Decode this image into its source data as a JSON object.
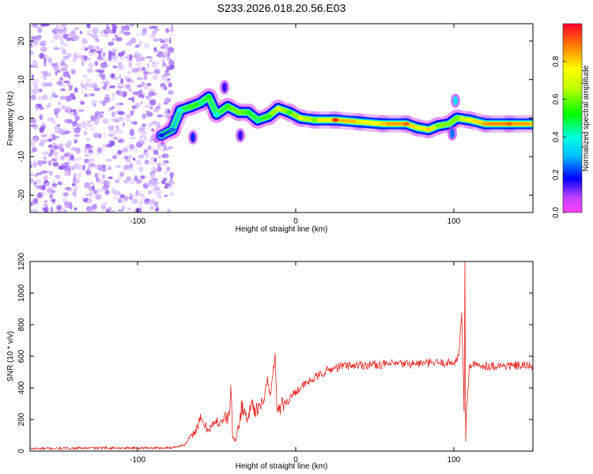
{
  "figure_title": "S233.2026.018.20.56.E03",
  "chart_data": [
    {
      "type": "heatmap",
      "title": "S233.2026.018.20.56.E03",
      "xlabel": "Height of straight line (km)",
      "ylabel": "Frequency (Hz)",
      "xlim": [
        -168,
        150
      ],
      "ylim": [
        -24.5,
        24.5
      ],
      "xticks": [
        -100,
        0,
        100
      ],
      "yticks": [
        -20,
        -10,
        0,
        10,
        20
      ],
      "colorbar": {
        "label": "Normalized spectral amplitude",
        "range": [
          0,
          1
        ],
        "ticks": [
          0.0,
          0.2,
          0.4,
          0.6,
          0.8
        ],
        "colormap": "rainbow (magenta-blue-cyan-green-yellow-red)"
      },
      "noise_region": {
        "x_from": -168,
        "x_to": -78,
        "amplitude_range": [
          0.0,
          0.1
        ]
      },
      "ridge": [
        {
          "x": -85,
          "freq": -4.5,
          "amp": 0.2
        },
        {
          "x": -78,
          "freq": -3.0,
          "amp": 0.25
        },
        {
          "x": -73,
          "freq": 2.0,
          "amp": 0.4
        },
        {
          "x": -66,
          "freq": 3.0,
          "amp": 0.55
        },
        {
          "x": -60,
          "freq": 4.0,
          "amp": 0.45
        },
        {
          "x": -55,
          "freq": 5.5,
          "amp": 0.5
        },
        {
          "x": -50,
          "freq": 1.0,
          "amp": 0.4
        },
        {
          "x": -43,
          "freq": 3.0,
          "amp": 0.55
        },
        {
          "x": -36,
          "freq": 1.5,
          "amp": 0.6
        },
        {
          "x": -30,
          "freq": 1.5,
          "amp": 0.5
        },
        {
          "x": -24,
          "freq": -0.5,
          "amp": 0.45
        },
        {
          "x": -17,
          "freq": 0.5,
          "amp": 0.55
        },
        {
          "x": -11,
          "freq": 2.5,
          "amp": 0.7
        },
        {
          "x": -4,
          "freq": 1.5,
          "amp": 0.55
        },
        {
          "x": 3,
          "freq": 0.0,
          "amp": 0.7
        },
        {
          "x": 12,
          "freq": -0.5,
          "amp": 0.6
        },
        {
          "x": 25,
          "freq": -0.5,
          "amp": 0.95
        },
        {
          "x": 40,
          "freq": -1.0,
          "amp": 0.7
        },
        {
          "x": 55,
          "freq": -1.5,
          "amp": 0.8
        },
        {
          "x": 70,
          "freq": -1.5,
          "amp": 0.9
        },
        {
          "x": 77,
          "freq": -2.5,
          "amp": 0.7
        },
        {
          "x": 84,
          "freq": -3.0,
          "amp": 0.8
        },
        {
          "x": 90,
          "freq": -2.0,
          "amp": 0.6
        },
        {
          "x": 97,
          "freq": -1.5,
          "amp": 0.6
        },
        {
          "x": 102,
          "freq": 0.0,
          "amp": 0.6
        },
        {
          "x": 110,
          "freq": -0.5,
          "amp": 0.75
        },
        {
          "x": 120,
          "freq": -1.5,
          "amp": 0.85
        },
        {
          "x": 135,
          "freq": -1.5,
          "amp": 0.9
        },
        {
          "x": 150,
          "freq": -1.5,
          "amp": 0.8
        }
      ],
      "secondary_blobs": [
        {
          "x": 101,
          "freq": 4.5,
          "amp": 0.35
        },
        {
          "x": 99,
          "freq": -4.0,
          "amp": 0.25
        },
        {
          "x": -65,
          "freq": -5.0,
          "amp": 0.2
        },
        {
          "x": -45,
          "freq": 8.0,
          "amp": 0.15
        },
        {
          "x": -35,
          "freq": -4.5,
          "amp": 0.15
        }
      ]
    },
    {
      "type": "line",
      "title": "",
      "xlabel": "Height of straight line (km)",
      "ylabel": "SNR (10 * v/v)",
      "xlim": [
        -168,
        150
      ],
      "ylim": [
        0,
        1200
      ],
      "xticks": [
        -100,
        0,
        100
      ],
      "yticks": [
        0,
        200,
        400,
        600,
        800,
        1000,
        1200
      ],
      "series": [
        {
          "name": "SNR",
          "color": "#e8231e",
          "x": [
            -168,
            -120,
            -80,
            -70,
            -64,
            -60,
            -56,
            -50,
            -46,
            -42,
            -41,
            -40,
            -38,
            -34,
            -30,
            -28,
            -24,
            -20,
            -18,
            -16,
            -14,
            -13,
            -12,
            -10,
            -5,
            0,
            10,
            20,
            30,
            40,
            60,
            80,
            100,
            103,
            104,
            105,
            106,
            106.5,
            107,
            107.5,
            108,
            110,
            120,
            150
          ],
          "y": [
            15,
            20,
            20,
            40,
            120,
            200,
            140,
            180,
            200,
            220,
            420,
            100,
            60,
            280,
            200,
            320,
            240,
            330,
            460,
            350,
            520,
            620,
            300,
            280,
            320,
            380,
            450,
            510,
            540,
            545,
            550,
            555,
            560,
            600,
            750,
            860,
            480,
            250,
            1200,
            60,
            260,
            545,
            540,
            540
          ]
        }
      ]
    }
  ]
}
